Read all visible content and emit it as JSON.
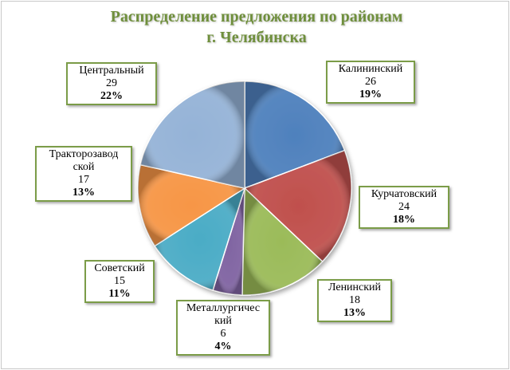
{
  "chart_data": {
    "type": "pie",
    "title_lines": [
      "Распределение предложения по районам",
      "г. Челябинска"
    ],
    "slices": [
      {
        "label": "Калининский",
        "label_lines": [
          "Калининский"
        ],
        "value": 26,
        "percent": "19%",
        "color": "#4f81bd"
      },
      {
        "label": "Курчатовский",
        "label_lines": [
          "Курчатовский"
        ],
        "value": 24,
        "percent": "18%",
        "color": "#c0504d"
      },
      {
        "label": "Ленинский",
        "label_lines": [
          "Ленинский"
        ],
        "value": 18,
        "percent": "13%",
        "color": "#9bbb59"
      },
      {
        "label": "Металлургический",
        "label_lines": [
          "Металлургичес",
          "кий"
        ],
        "value": 6,
        "percent": "4%",
        "color": "#8064a2"
      },
      {
        "label": "Советский",
        "label_lines": [
          "Советский"
        ],
        "value": 15,
        "percent": "11%",
        "color": "#4bacc6"
      },
      {
        "label": "Тракторозаводской",
        "label_lines": [
          "Тракторозавод",
          "ской"
        ],
        "value": 17,
        "percent": "13%",
        "color": "#f79646"
      },
      {
        "label": "Центральный",
        "label_lines": [
          "Центральный"
        ],
        "value": 29,
        "percent": "22%",
        "color": "#95b3d7"
      }
    ],
    "start_angle_deg": 0,
    "direction": "clockwise"
  }
}
